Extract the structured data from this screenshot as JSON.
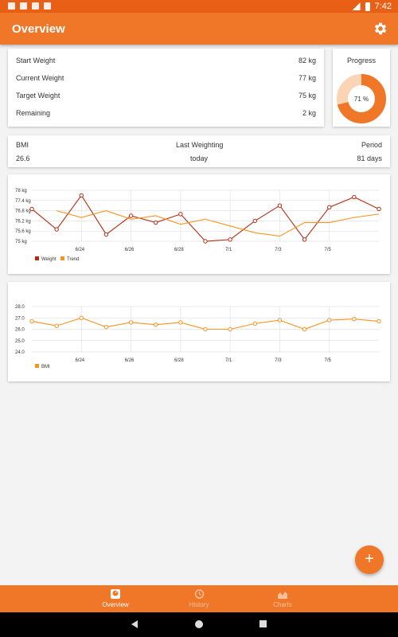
{
  "status_bar": {
    "time": "7:42"
  },
  "app_bar": {
    "title": "Overview",
    "settings_icon": "gear-icon"
  },
  "weights": {
    "items": [
      {
        "label": "Start Weight",
        "value": "82 kg"
      },
      {
        "label": "Current Weight",
        "value": "77 kg"
      },
      {
        "label": "Target Weight",
        "value": "75 kg"
      },
      {
        "label": "Remaining",
        "value": "2 kg"
      }
    ]
  },
  "progress": {
    "title": "Progress",
    "label": "71 %",
    "value": 0.71,
    "color": "#f07628"
  },
  "summary": {
    "bmi_label": "BMI",
    "bmi_value": "26.6",
    "last_label": "Last Weighting",
    "last_value": "today",
    "period_label": "Period",
    "period_value": "81 days"
  },
  "chart_data": [
    {
      "type": "line",
      "x_ticks": [
        "6/24",
        "6/26",
        "6/28",
        "7/1",
        "7/3",
        "7/5"
      ],
      "y_ticks": [
        "78 kg",
        "77.4 kg",
        "76.8 kg",
        "76.2 kg",
        "75.6 kg",
        "75 kg"
      ],
      "ylim": [
        75,
        78
      ],
      "series": [
        {
          "name": "Weight",
          "color": "#b52b12",
          "markers": true,
          "values": [
            76.9,
            75.7,
            77.7,
            75.4,
            76.5,
            76.1,
            76.6,
            75.0,
            75.1,
            76.2,
            77.1,
            75.1,
            77.0,
            77.6,
            76.9
          ]
        },
        {
          "name": "Trend",
          "color": "#f7931e",
          "markers": false,
          "values": [
            null,
            76.8,
            76.4,
            76.8,
            76.3,
            76.5,
            76.0,
            76.3,
            75.9,
            75.5,
            75.3,
            76.1,
            76.1,
            76.4,
            76.6
          ]
        }
      ]
    },
    {
      "type": "line",
      "x_ticks": [
        "6/24",
        "6/26",
        "6/28",
        "7/1",
        "7/3",
        "7/5"
      ],
      "y_ticks": [
        "28.0",
        "27.0",
        "26.0",
        "25.0",
        "24.0"
      ],
      "ylim": [
        24,
        28
      ],
      "series": [
        {
          "name": "BMI",
          "color": "#f7931e",
          "markers": true,
          "values": [
            26.7,
            26.3,
            27.0,
            26.2,
            26.6,
            26.4,
            26.6,
            26.0,
            26.0,
            26.5,
            26.8,
            26.0,
            26.8,
            26.9,
            26.7
          ]
        }
      ]
    }
  ],
  "bottom_nav": {
    "items": [
      {
        "label": "Overview",
        "icon": "scale-icon",
        "active": true
      },
      {
        "label": "History",
        "icon": "history-icon",
        "active": false
      },
      {
        "label": "Charts",
        "icon": "area-chart-icon",
        "active": false
      }
    ]
  },
  "fab": {
    "label": "+"
  }
}
